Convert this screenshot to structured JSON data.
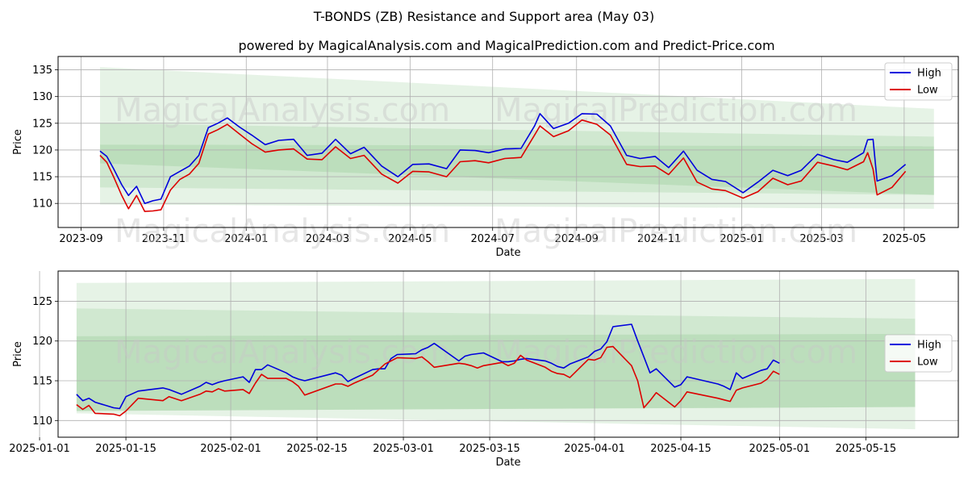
{
  "title_main": "T-BONDS (ZB) Resistance and Support area (May 03)",
  "title_sub": "powered by MagicalAnalysis.com and MagicalPrediction.com and Predict-Price.com",
  "watermarks": [
    "MagicalAnalysis.com",
    "MagicalPrediction.com"
  ],
  "colors": {
    "high": "#0000dd",
    "low": "#dd0000",
    "band": "#2e9e2e",
    "grid": "#b0b0b0"
  },
  "chart_data": [
    {
      "type": "line",
      "xlabel": "Date",
      "ylabel": "Price",
      "xlim": [
        "2023-08-15",
        "2025-06-10"
      ],
      "ylim": [
        105.5,
        137.5
      ],
      "xticks": [
        "2023-09-01",
        "2023-11-01",
        "2024-01-01",
        "2024-03-01",
        "2024-05-01",
        "2024-07-01",
        "2024-09-01",
        "2024-11-01",
        "2025-01-01",
        "2025-03-01",
        "2025-05-01"
      ],
      "xtick_labels": [
        "2023-09",
        "2023-11",
        "2024-01",
        "2024-03",
        "2024-05",
        "2024-07",
        "2024-09",
        "2024-11",
        "2025-01",
        "2025-03",
        "2025-05"
      ],
      "yticks": [
        110,
        115,
        120,
        125,
        130,
        135
      ],
      "grid": true,
      "legend": "top-right",
      "bands": [
        {
          "x0": "2023-09-15",
          "x1": "2025-05-23",
          "top": [
            135.5,
            127.7
          ],
          "bottom": [
            109.8,
            109.0
          ],
          "opacity": 0.12
        },
        {
          "x0": "2023-09-15",
          "x1": "2025-05-23",
          "top": [
            125.0,
            122.5
          ],
          "bottom": [
            113.0,
            111.6
          ],
          "opacity": 0.12
        },
        {
          "x0": "2023-09-15",
          "x1": "2025-05-23",
          "top": [
            121.0,
            120.7
          ],
          "bottom": [
            117.5,
            111.6
          ],
          "opacity": 0.12
        }
      ],
      "x": [
        "2023-09-15",
        "2023-09-20",
        "2023-09-25",
        "2023-10-01",
        "2023-10-06",
        "2023-10-12",
        "2023-10-18",
        "2023-10-24",
        "2023-10-30",
        "2023-11-06",
        "2023-11-13",
        "2023-11-20",
        "2023-11-27",
        "2023-12-04",
        "2023-12-11",
        "2023-12-18",
        "2023-12-27",
        "2024-01-05",
        "2024-01-15",
        "2024-01-25",
        "2024-02-05",
        "2024-02-15",
        "2024-02-26",
        "2024-03-07",
        "2024-03-18",
        "2024-03-28",
        "2024-04-10",
        "2024-04-22",
        "2024-05-03",
        "2024-05-15",
        "2024-05-28",
        "2024-06-07",
        "2024-06-18",
        "2024-06-28",
        "2024-07-10",
        "2024-07-22",
        "2024-08-01",
        "2024-08-05",
        "2024-08-15",
        "2024-08-26",
        "2024-09-05",
        "2024-09-16",
        "2024-09-26",
        "2024-10-08",
        "2024-10-18",
        "2024-10-29",
        "2024-11-08",
        "2024-11-19",
        "2024-11-29",
        "2024-12-10",
        "2024-12-20",
        "2025-01-02",
        "2025-01-13",
        "2025-01-24",
        "2025-02-04",
        "2025-02-14",
        "2025-02-26",
        "2025-03-10",
        "2025-03-20",
        "2025-04-01",
        "2025-04-04",
        "2025-04-08",
        "2025-04-11",
        "2025-04-22",
        "2025-05-02"
      ],
      "series": [
        {
          "name": "High",
          "values": [
            119.8,
            118.8,
            116.5,
            113.5,
            111.5,
            113.2,
            110.0,
            110.5,
            110.8,
            115.0,
            116.0,
            117.0,
            119.0,
            124.2,
            125.0,
            126.0,
            124.3,
            122.8,
            121.0,
            121.8,
            122.0,
            119.0,
            119.4,
            122.0,
            119.3,
            120.5,
            117.0,
            115.0,
            117.3,
            117.4,
            116.5,
            120.0,
            119.9,
            119.5,
            120.2,
            120.3,
            124.5,
            126.8,
            124.0,
            125.0,
            126.8,
            126.7,
            124.5,
            119.0,
            118.4,
            118.8,
            116.7,
            119.8,
            116.2,
            114.5,
            114.1,
            112.0,
            114.0,
            116.2,
            115.2,
            116.2,
            119.2,
            118.2,
            117.7,
            119.5,
            121.9,
            122.0,
            114.2,
            115.2,
            117.3
          ]
        },
        {
          "name": "Low",
          "values": [
            119.0,
            117.7,
            115.0,
            111.5,
            109.0,
            111.5,
            108.5,
            108.6,
            108.8,
            112.5,
            114.5,
            115.5,
            117.5,
            123.0,
            123.8,
            124.8,
            123.0,
            121.2,
            119.6,
            120.0,
            120.2,
            118.3,
            118.2,
            120.6,
            118.4,
            119.0,
            115.5,
            113.8,
            116.0,
            115.9,
            115.0,
            117.8,
            118.0,
            117.6,
            118.4,
            118.6,
            122.8,
            124.5,
            122.5,
            123.6,
            125.6,
            124.8,
            122.8,
            117.3,
            116.9,
            117.0,
            115.4,
            118.5,
            114.0,
            112.7,
            112.4,
            111.0,
            112.2,
            114.7,
            113.5,
            114.2,
            117.7,
            117.0,
            116.3,
            117.8,
            119.5,
            116.4,
            111.6,
            113.0,
            116.0
          ]
        }
      ]
    },
    {
      "type": "line",
      "xlabel": "Date",
      "ylabel": "Price",
      "xlim": [
        "2025-01-04",
        "2025-05-30"
      ],
      "ylim": [
        107.9,
        128.8
      ],
      "xticks": [
        "2025-01-01",
        "2025-01-15",
        "2025-02-01",
        "2025-02-15",
        "2025-03-01",
        "2025-03-15",
        "2025-04-01",
        "2025-04-15",
        "2025-05-01",
        "2025-05-15"
      ],
      "xtick_labels": [
        "2025-01-01",
        "2025-01-15",
        "2025-02-01",
        "2025-02-15",
        "2025-03-01",
        "2025-03-15",
        "2025-04-01",
        "2025-04-15",
        "2025-05-01",
        "2025-05-15"
      ],
      "yticks": [
        110,
        115,
        120,
        125
      ],
      "grid": true,
      "legend": "center-right",
      "bands": [
        {
          "x0": "2025-01-07",
          "x1": "2025-05-23",
          "top": [
            127.3,
            127.8
          ],
          "bottom": [
            110.9,
            108.9
          ],
          "opacity": 0.12
        },
        {
          "x0": "2025-01-07",
          "x1": "2025-05-23",
          "top": [
            124.1,
            122.8
          ],
          "bottom": [
            111.2,
            111.7
          ],
          "opacity": 0.12
        },
        {
          "x0": "2025-01-07",
          "x1": "2025-05-23",
          "top": [
            120.6,
            120.9
          ],
          "bottom": [
            111.2,
            111.7
          ],
          "opacity": 0.12
        }
      ],
      "x": [
        "2025-01-07",
        "2025-01-08",
        "2025-01-09",
        "2025-01-10",
        "2025-01-13",
        "2025-01-14",
        "2025-01-15",
        "2025-01-17",
        "2025-01-21",
        "2025-01-22",
        "2025-01-24",
        "2025-01-27",
        "2025-01-28",
        "2025-01-29",
        "2025-01-30",
        "2025-01-31",
        "2025-02-03",
        "2025-02-04",
        "2025-02-05",
        "2025-02-06",
        "2025-02-07",
        "2025-02-10",
        "2025-02-11",
        "2025-02-12",
        "2025-02-13",
        "2025-02-18",
        "2025-02-19",
        "2025-02-20",
        "2025-02-21",
        "2025-02-24",
        "2025-02-25",
        "2025-02-26",
        "2025-02-27",
        "2025-02-28",
        "2025-03-03",
        "2025-03-04",
        "2025-03-05",
        "2025-03-06",
        "2025-03-10",
        "2025-03-11",
        "2025-03-12",
        "2025-03-13",
        "2025-03-14",
        "2025-03-17",
        "2025-03-18",
        "2025-03-19",
        "2025-03-20",
        "2025-03-21",
        "2025-03-24",
        "2025-03-25",
        "2025-03-26",
        "2025-03-27",
        "2025-03-28",
        "2025-03-31",
        "2025-04-01",
        "2025-04-02",
        "2025-04-03",
        "2025-04-04",
        "2025-04-07",
        "2025-04-08",
        "2025-04-09",
        "2025-04-10",
        "2025-04-11",
        "2025-04-14",
        "2025-04-15",
        "2025-04-16",
        "2025-04-21",
        "2025-04-22",
        "2025-04-23",
        "2025-04-24",
        "2025-04-25",
        "2025-04-28",
        "2025-04-29",
        "2025-04-30",
        "2025-05-01"
      ],
      "series": [
        {
          "name": "High",
          "values": [
            113.3,
            112.5,
            112.8,
            112.3,
            111.6,
            111.5,
            113.0,
            113.7,
            114.1,
            113.9,
            113.3,
            114.3,
            114.8,
            114.5,
            114.8,
            115.0,
            115.5,
            114.8,
            116.4,
            116.4,
            117.0,
            116.0,
            115.5,
            115.2,
            115.0,
            116.0,
            115.7,
            114.9,
            115.3,
            116.4,
            116.5,
            116.5,
            117.8,
            118.3,
            118.4,
            118.9,
            119.2,
            119.7,
            117.5,
            118.1,
            118.3,
            118.4,
            118.5,
            117.4,
            117.4,
            117.5,
            117.7,
            117.8,
            117.5,
            117.2,
            116.8,
            116.6,
            117.1,
            118.0,
            118.7,
            119.0,
            119.9,
            121.8,
            122.1,
            120.0,
            118.0,
            116.0,
            116.5,
            114.2,
            114.5,
            115.5,
            114.6,
            114.3,
            113.9,
            116.0,
            115.3,
            116.3,
            116.5,
            117.6,
            117.2
          ]
        },
        {
          "name": "Low",
          "values": [
            112.0,
            111.4,
            111.9,
            110.9,
            110.8,
            110.6,
            111.2,
            112.8,
            112.5,
            113.0,
            112.5,
            113.3,
            113.7,
            113.6,
            114.0,
            113.7,
            113.9,
            113.4,
            114.7,
            115.8,
            115.3,
            115.3,
            114.9,
            114.3,
            113.2,
            114.6,
            114.6,
            114.3,
            114.7,
            115.7,
            116.4,
            117.1,
            117.5,
            117.9,
            117.8,
            118.0,
            117.4,
            116.7,
            117.2,
            117.1,
            116.9,
            116.6,
            116.9,
            117.3,
            116.9,
            117.2,
            118.2,
            117.6,
            116.7,
            116.2,
            115.9,
            115.8,
            115.4,
            117.7,
            117.6,
            117.9,
            119.2,
            119.3,
            116.9,
            115.0,
            111.6,
            112.5,
            113.5,
            111.7,
            112.5,
            113.6,
            112.8,
            112.6,
            112.4,
            113.8,
            114.1,
            114.7,
            115.2,
            116.2,
            115.8
          ]
        }
      ]
    }
  ]
}
